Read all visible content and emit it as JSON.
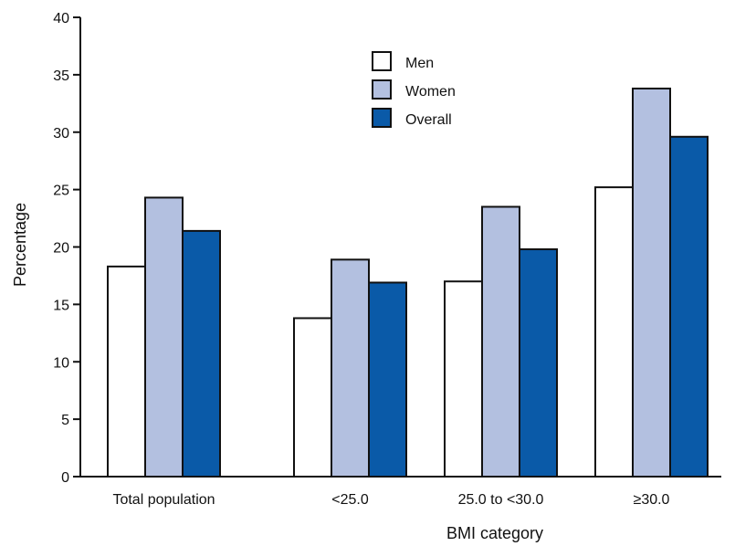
{
  "chart_data": {
    "type": "bar",
    "title": "",
    "xlabel": "BMI category",
    "ylabel": "Percentage",
    "ylim": [
      0,
      40
    ],
    "yticks": [
      0,
      5,
      10,
      15,
      20,
      25,
      30,
      35,
      40
    ],
    "categories": [
      "Total population",
      "<25.0",
      "25.0 to <30.0",
      "≥30.0"
    ],
    "series": [
      {
        "name": "Men",
        "color": "#ffffff",
        "values": [
          18.3,
          13.8,
          17.0,
          25.2
        ]
      },
      {
        "name": "Women",
        "color": "#b3c0e0",
        "values": [
          24.3,
          18.9,
          23.5,
          33.8
        ]
      },
      {
        "name": "Overall",
        "color": "#0a5aa8",
        "values": [
          21.4,
          16.9,
          19.8,
          29.6
        ]
      }
    ],
    "grid": false,
    "legend_position": "top-center"
  }
}
